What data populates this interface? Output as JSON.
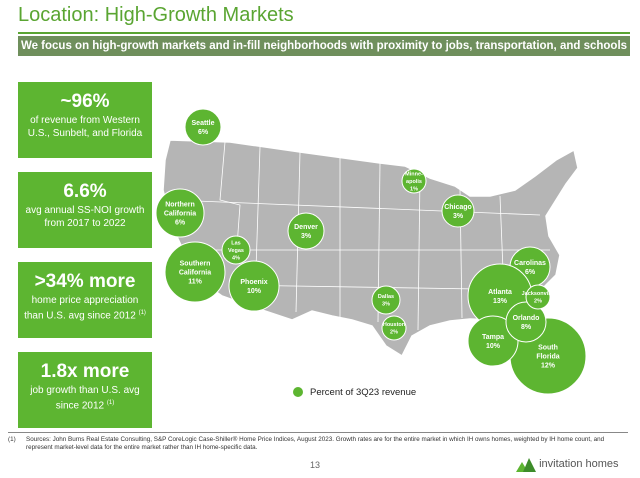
{
  "title": "Location: High-Growth Markets",
  "subtitle": "We focus on high-growth markets and in-fill neighborhoods with proximity to jobs, transportation, and schools",
  "stats": [
    {
      "big": "~96%",
      "text": "of revenue from Western U.S., Sunbelt, and Florida"
    },
    {
      "big": "6.6%",
      "text": "avg annual SS-NOI growth from 2017 to 2022"
    },
    {
      "big": ">34% more",
      "text": "home price appreciation than U.S. avg since 2012",
      "note": "(1)"
    },
    {
      "big": "1.8x more",
      "text": "job growth than U.S. avg since 2012",
      "note": "(1)"
    }
  ],
  "markets": [
    {
      "name": [
        "Seattle"
      ],
      "share": "6%"
    },
    {
      "name": [
        "Northern",
        "California"
      ],
      "share": "6%"
    },
    {
      "name": [
        "Southern",
        "California"
      ],
      "share": "11%"
    },
    {
      "name": [
        "Phoenix"
      ],
      "share": "10%"
    },
    {
      "name": [
        "Las",
        "Vegas"
      ],
      "share": "4%"
    },
    {
      "name": [
        "Denver"
      ],
      "share": "3%"
    },
    {
      "name": [
        "Minne-",
        "apolis"
      ],
      "share": "1%"
    },
    {
      "name": [
        "Chicago"
      ],
      "share": "3%"
    },
    {
      "name": [
        "Dallas"
      ],
      "share": "3%"
    },
    {
      "name": [
        "Houston"
      ],
      "share": "2%"
    },
    {
      "name": [
        "Carolinas"
      ],
      "share": "6%"
    },
    {
      "name": [
        "Atlanta"
      ],
      "share": "13%"
    },
    {
      "name": [
        "South",
        "Florida"
      ],
      "share": "12%"
    },
    {
      "name": [
        "Tampa"
      ],
      "share": "10%"
    },
    {
      "name": [
        "Orlando"
      ],
      "share": "8%"
    },
    {
      "name": [
        "Jacksonville"
      ],
      "share": "2%"
    }
  ],
  "legend": "Percent of 3Q23 revenue",
  "footnote": {
    "marker": "(1)",
    "text": "Sources: John Burns Real Estate Consulting, S&P CoreLogic Case-Shiller® Home Price Indices, August 2023. Growth rates are for the entire market in which IH owns homes, weighted by IH home count, and represent market-level data for the entire market rather than IH home-specific data."
  },
  "page_number": "13",
  "logo": "invitation homes"
}
